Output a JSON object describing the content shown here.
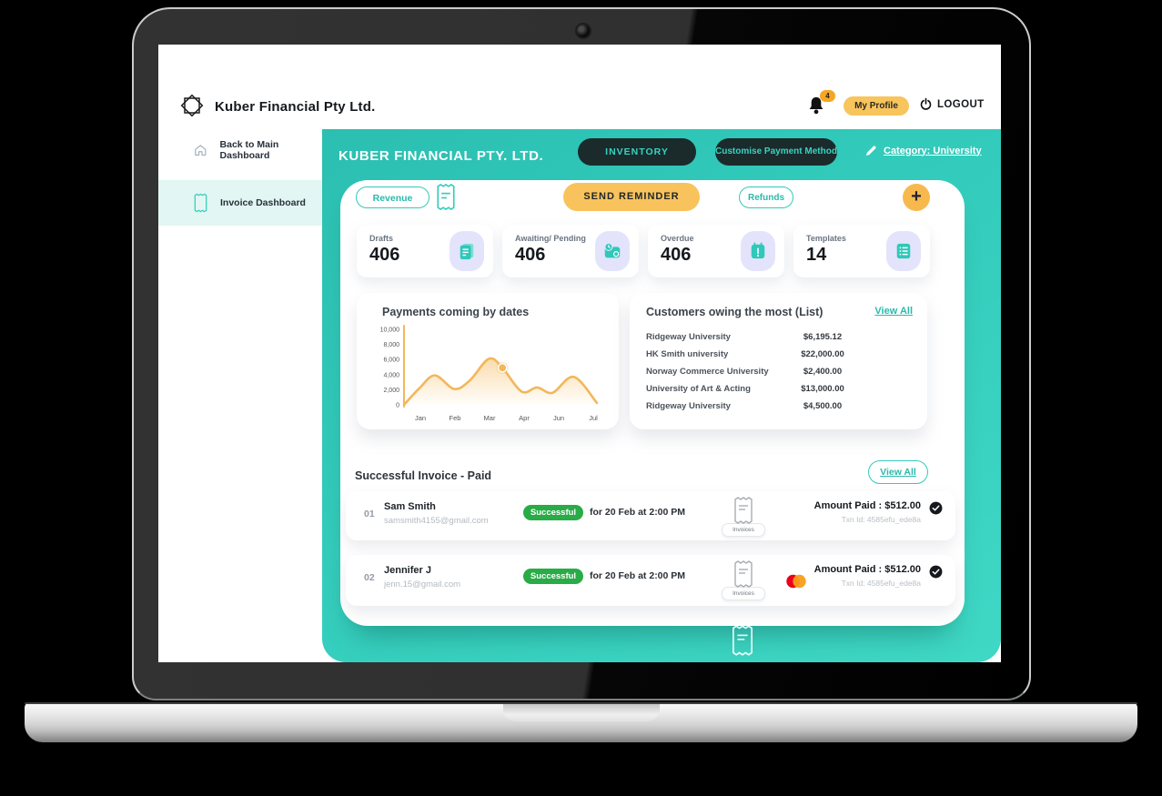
{
  "brand": {
    "name": "Kuber Financial Pty Ltd."
  },
  "topbar": {
    "notification_count": "4",
    "profile_label": "My Profile",
    "logout_label": "LOGOUT"
  },
  "sidebar": {
    "items": [
      {
        "label": "Back to Main Dashboard",
        "icon": "home-icon",
        "active": false
      },
      {
        "label": "Invoice Dashboard",
        "icon": "invoice-icon",
        "active": true
      }
    ]
  },
  "main": {
    "title": "KUBER FINANCIAL PTY. LTD.",
    "inventory_label": "INVENTORY",
    "customise_label": "Customise Payment Method",
    "category_label": "Category: University"
  },
  "toolbar": {
    "revenue_label": "Revenue",
    "send_reminder_label": "SEND REMINDER",
    "refunds_label": "Refunds",
    "add_label": "+"
  },
  "stats": {
    "items": [
      {
        "label": "Drafts",
        "value": "406",
        "icon": "document-icon"
      },
      {
        "label": "Awaiting/ Pending",
        "value": "406",
        "icon": "wallet-clock-icon"
      },
      {
        "label": "Overdue",
        "value": "406",
        "icon": "calendar-alert-icon"
      },
      {
        "label": "Templates",
        "value": "14",
        "icon": "template-list-icon"
      }
    ]
  },
  "chart_data": {
    "type": "area",
    "title": "Payments coming by dates",
    "x_labels": [
      "Jan",
      "Feb",
      "Mar",
      "Apr",
      "Jun",
      "Jul"
    ],
    "y_ticks": [
      "10,000",
      "8,000",
      "6,000",
      "4,000",
      "2,000",
      "0"
    ],
    "ylim": [
      0,
      10000
    ],
    "grid": false,
    "legend": "none",
    "series": [
      {
        "name": "Payments",
        "points": [
          {
            "x": 0,
            "y": 0
          },
          {
            "x": 8,
            "y": 2200
          },
          {
            "x": 16,
            "y": 3900
          },
          {
            "x": 26,
            "y": 2100
          },
          {
            "x": 34,
            "y": 3200
          },
          {
            "x": 44,
            "y": 6100
          },
          {
            "x": 51,
            "y": 4900,
            "highlight": true
          },
          {
            "x": 61,
            "y": 1750
          },
          {
            "x": 69,
            "y": 2300
          },
          {
            "x": 77,
            "y": 1600
          },
          {
            "x": 88,
            "y": 3700
          },
          {
            "x": 100,
            "y": 250
          }
        ]
      }
    ],
    "line_color": "#F2B75B",
    "fill_color": "#F7BF69",
    "axis_color": "#F2B75B"
  },
  "owing": {
    "title": "Customers owing the most (List)",
    "view_all_label": "View All",
    "rows": [
      {
        "name": "Ridgeway University",
        "amount": "$6,195.12"
      },
      {
        "name": "HK Smith university",
        "amount": "$22,000.00"
      },
      {
        "name": "Norway Commerce University",
        "amount": "$2,400.00"
      },
      {
        "name": "University of Art & Acting",
        "amount": "$13,000.00"
      },
      {
        "name": "Ridgeway University",
        "amount": "$4,500.00"
      }
    ]
  },
  "invoices": {
    "heading": "Successful Invoice - Paid",
    "view_all_label": "View All",
    "rows": [
      {
        "index": "01",
        "name": "Sam Smith",
        "email": "samsmith4155@gmail.com",
        "status": "Successful",
        "datetime": "for 20 Feb at 2:00 PM",
        "attachment_label": "Invoices",
        "amount": "Amount Paid : $512.00",
        "txn": "Txn Id: 4585efu_ede8a",
        "card": ""
      },
      {
        "index": "02",
        "name": "Jennifer J",
        "email": "jenn.15@gmail.com",
        "status": "Successful",
        "datetime": "for 20 Feb at 2:00 PM",
        "attachment_label": "Invoices",
        "amount": "Amount Paid : $512.00",
        "txn": "Txn Id: 4585efu_ede8a",
        "card": "mastercard"
      }
    ]
  },
  "colors": {
    "teal": "#33CCBC",
    "teal_dark": "#2BB9AB",
    "dark_pill": "#1B2A2B",
    "orange": "#F8C35C",
    "green": "#29AB47",
    "lavender": "#E3E4FB",
    "mastercard_red": "#EB001B",
    "mastercard_orange": "#F79E1B"
  }
}
